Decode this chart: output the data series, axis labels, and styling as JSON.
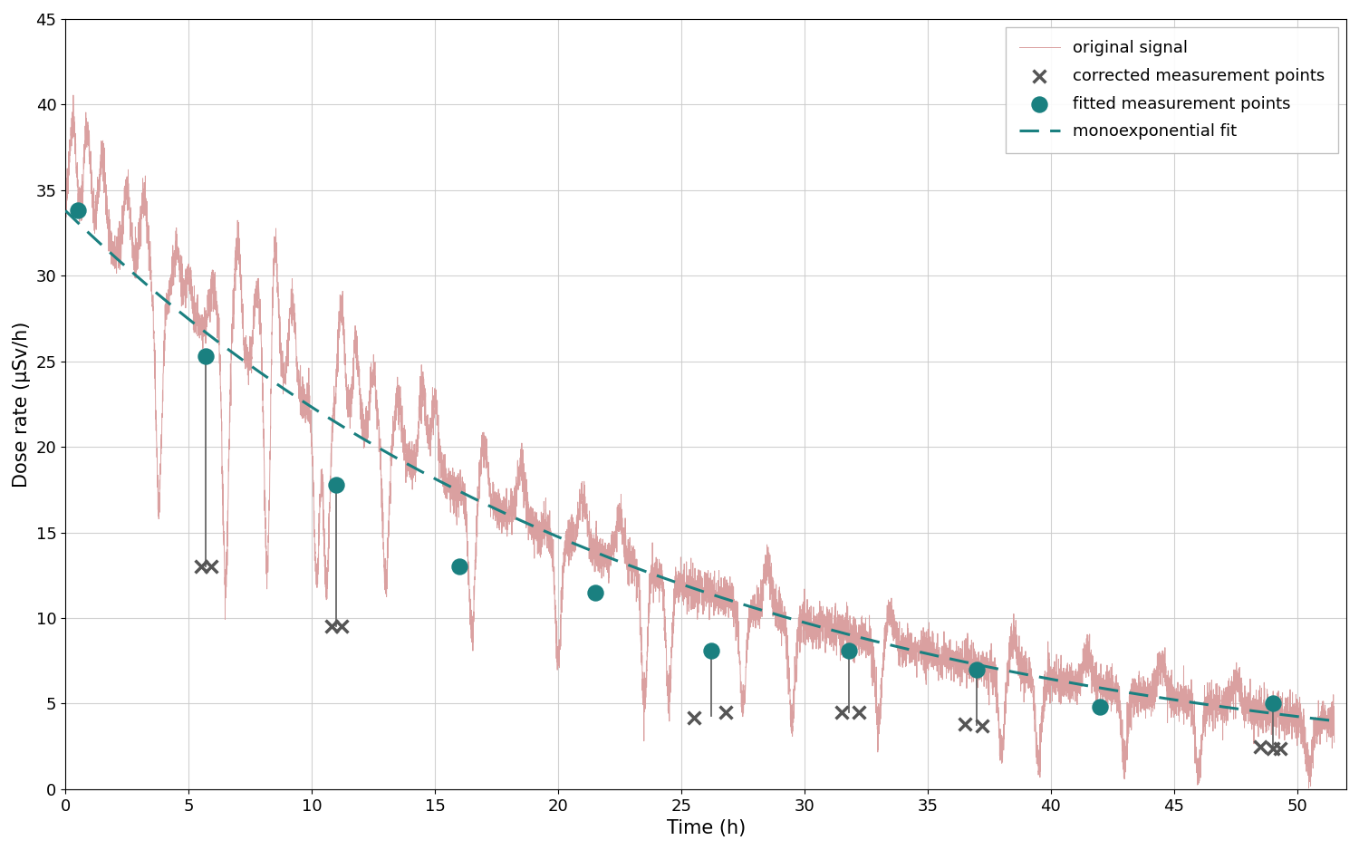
{
  "xlabel": "Time (h)",
  "ylabel": "Dose rate (μSv/h)",
  "xlim": [
    0,
    52
  ],
  "ylim": [
    0,
    45
  ],
  "xticks": [
    0,
    5,
    10,
    15,
    20,
    25,
    30,
    35,
    40,
    45,
    50
  ],
  "yticks": [
    0,
    5,
    10,
    15,
    20,
    25,
    30,
    35,
    40,
    45
  ],
  "signal_color": "#daa0a0",
  "fit_color": "#1a8080",
  "corrected_color": "#555555",
  "fitted_color": "#1a8080",
  "fit_A": 33.8,
  "fit_lambda": 0.0415,
  "corrected_points_x": [
    5.5,
    5.9,
    10.8,
    11.2,
    25.5,
    26.8,
    31.5,
    32.2,
    36.5,
    37.2,
    48.5,
    49.0,
    49.3
  ],
  "corrected_points_y": [
    13.0,
    13.0,
    9.5,
    9.5,
    4.2,
    4.5,
    4.5,
    4.5,
    3.8,
    3.7,
    2.5,
    2.4,
    2.4
  ],
  "fitted_points_x": [
    0.5,
    5.7,
    11.0,
    16.0,
    21.5,
    26.2,
    31.8,
    37.0,
    42.0,
    49.0
  ],
  "fitted_points_y": [
    33.8,
    25.3,
    17.8,
    13.0,
    11.5,
    8.1,
    8.1,
    7.0,
    4.8,
    5.0
  ],
  "vertical_lines": [
    [
      5.7,
      13.0,
      25.3
    ],
    [
      11.0,
      9.5,
      17.8
    ],
    [
      26.2,
      4.3,
      8.1
    ],
    [
      31.8,
      4.5,
      8.1
    ],
    [
      37.0,
      3.75,
      7.0
    ],
    [
      49.0,
      2.4,
      5.0
    ]
  ],
  "legend_labels": [
    "original signal",
    "corrected measurement points",
    "fitted measurement points",
    "monoexponential fit"
  ],
  "background_color": "#ffffff",
  "grid_color": "#cccccc"
}
